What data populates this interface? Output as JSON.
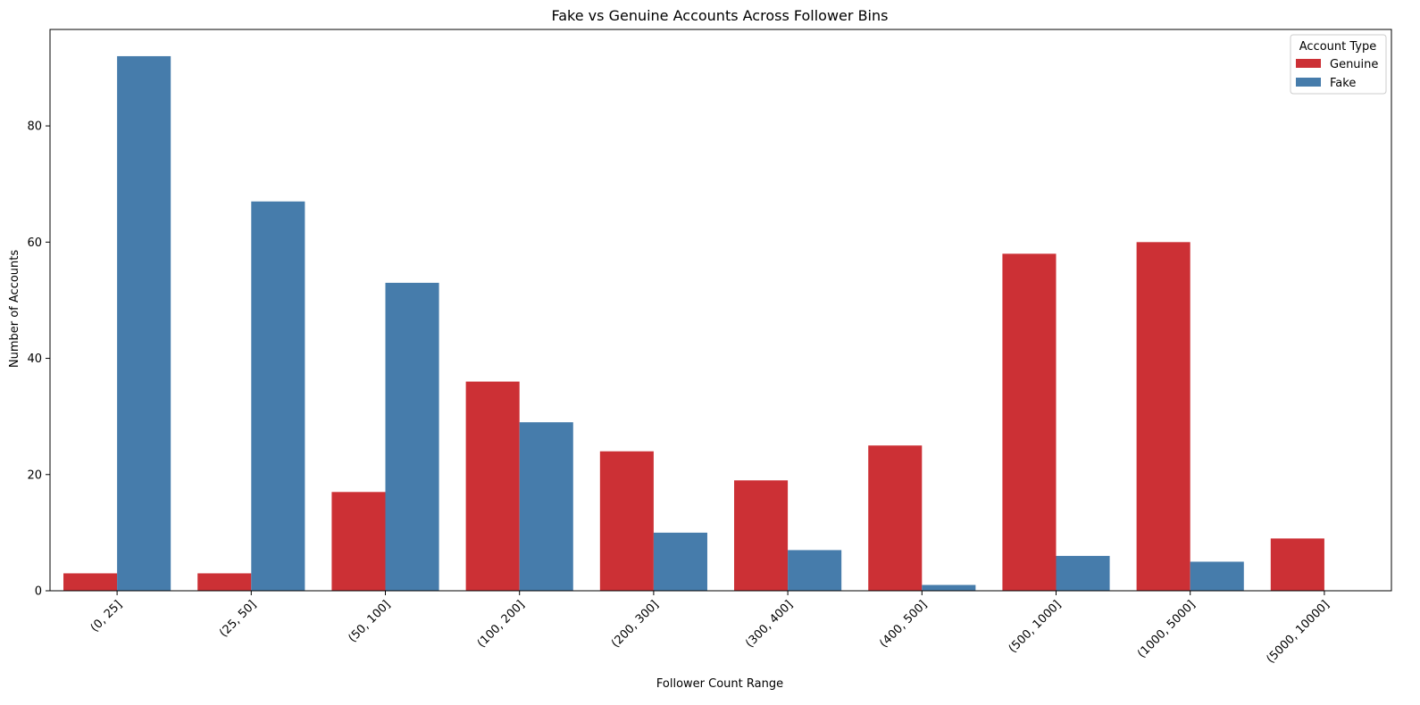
{
  "chart_data": {
    "type": "bar",
    "title": "Fake vs Genuine Accounts Across Follower Bins",
    "xlabel": "Follower Count Range",
    "ylabel": "Number of Accounts",
    "categories": [
      "(0, 25]",
      "(25, 50]",
      "(50, 100]",
      "(100, 200]",
      "(200, 300]",
      "(300, 400]",
      "(400, 500]",
      "(500, 1000]",
      "(1000, 5000]",
      "(5000, 10000]"
    ],
    "series": [
      {
        "name": "Genuine",
        "color": "#cc3035",
        "values": [
          3,
          3,
          17,
          36,
          24,
          19,
          25,
          58,
          60,
          9
        ]
      },
      {
        "name": "Fake",
        "color": "#467cab",
        "values": [
          92,
          67,
          53,
          29,
          10,
          7,
          1,
          6,
          5,
          0
        ]
      }
    ],
    "ylim": [
      0,
      96.6
    ],
    "yticks": [
      0,
      20,
      40,
      60,
      80
    ],
    "grid": false,
    "legend": {
      "title": "Account Type",
      "position": "top-right"
    }
  }
}
